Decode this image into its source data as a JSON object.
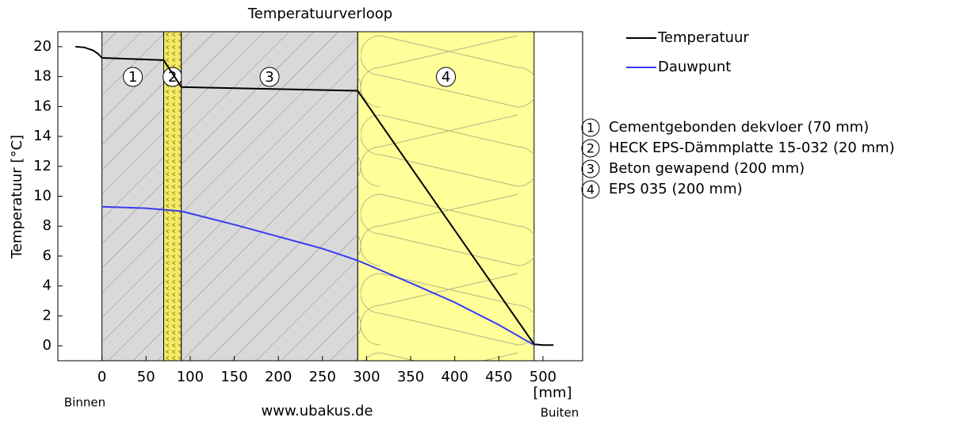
{
  "chart_data": {
    "type": "line",
    "title": "Temperatuurverloop",
    "ylabel": "Temperatuur [°C]",
    "xlabel": "[mm]",
    "inside_label": "Binnen",
    "outside_label": "Buiten",
    "source": "www.ubakus.de",
    "xlim": [
      -50,
      545
    ],
    "ylim": [
      -1,
      21
    ],
    "xticks": [
      0,
      50,
      100,
      150,
      200,
      250,
      300,
      350,
      400,
      450,
      500
    ],
    "yticks": [
      0,
      2,
      4,
      6,
      8,
      10,
      12,
      14,
      16,
      18,
      20
    ],
    "layers": [
      {
        "number": "1",
        "name": "Cementgebonden dekvloer (70 mm)",
        "start": 0,
        "end": 70,
        "color": "#d9d9d9"
      },
      {
        "number": "2",
        "name": "HECK EPS-Dämmplatte 15-032 (20 mm)",
        "start": 70,
        "end": 90,
        "color": "#f2ea6a"
      },
      {
        "number": "3",
        "name": "Beton gewapend (200 mm)",
        "start": 90,
        "end": 290,
        "color": "#d9d9d9"
      },
      {
        "number": "4",
        "name": "EPS 035 (200 mm)",
        "start": 290,
        "end": 490,
        "color": "#ffff99"
      }
    ],
    "series": [
      {
        "name": "Temperatuur",
        "color": "#000000",
        "x": [
          -30,
          -20,
          -10,
          -4,
          0,
          70,
          90,
          290,
          490,
          500,
          512
        ],
        "values": [
          20,
          19.95,
          19.75,
          19.5,
          19.25,
          19.1,
          17.3,
          17.05,
          0.1,
          0.05,
          0.05
        ]
      },
      {
        "name": "Dauwpunt",
        "color": "#3b3bf0",
        "x": [
          0,
          50,
          90,
          150,
          200,
          250,
          290,
          350,
          400,
          450,
          490
        ],
        "values": [
          9.3,
          9.2,
          9.0,
          8.1,
          7.3,
          6.5,
          5.7,
          4.2,
          2.9,
          1.4,
          0.05
        ]
      }
    ]
  }
}
